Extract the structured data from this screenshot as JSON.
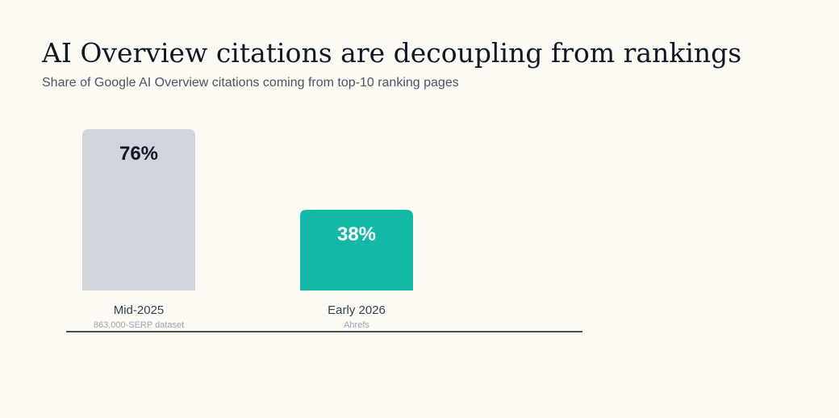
{
  "chart_data": {
    "type": "bar",
    "title": "AI Overview citations are decoupling from rankings",
    "subtitle": "Share of Google AI Overview citations coming from top-10 ranking pages",
    "categories": [
      "Mid-2025",
      "Early 2026"
    ],
    "category_notes": [
      "863,000-SERP dataset",
      "Ahrefs"
    ],
    "values": [
      76,
      38
    ],
    "value_labels": [
      "76%",
      "38%"
    ],
    "colors": [
      "#d1d5db",
      "#14b8a6"
    ]
  }
}
